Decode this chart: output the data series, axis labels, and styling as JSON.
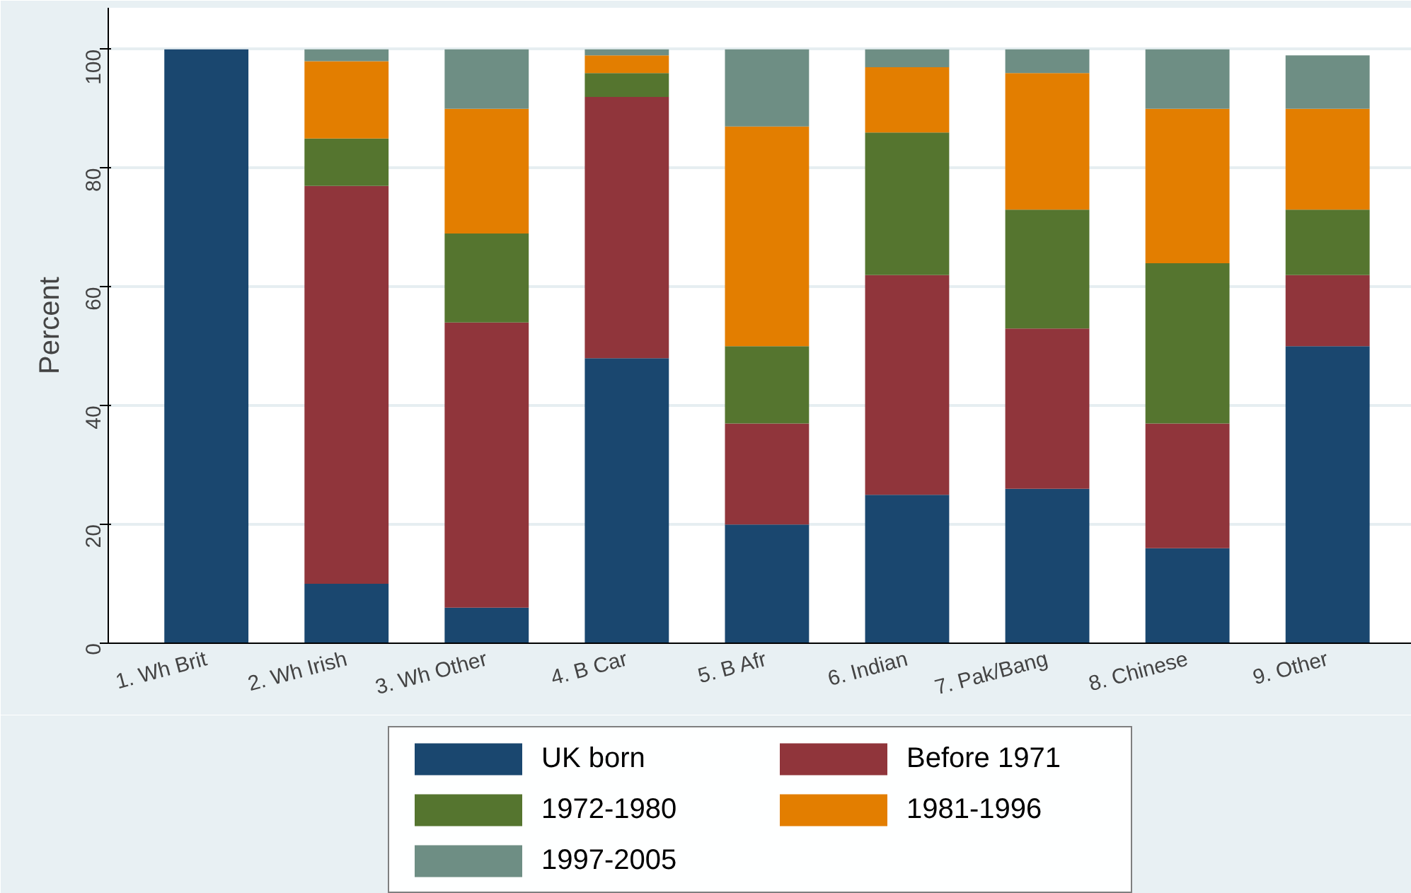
{
  "chart_data": {
    "type": "bar",
    "stacked": true,
    "ylabel": "Percent",
    "categories": [
      "1. Wh Brit",
      "2. Wh Irish",
      "3. Wh Other",
      "4. B Car",
      "5. B Afr",
      "6. Indian",
      "7. Pak/Bang",
      "8. Chinese",
      "9. Other"
    ],
    "series": [
      {
        "name": "UK born",
        "color": "#1a476f",
        "values": [
          100,
          10,
          6,
          48,
          20,
          25,
          26,
          16,
          50
        ]
      },
      {
        "name": "Before 1971",
        "color": "#90353b",
        "values": [
          0,
          67,
          48,
          44,
          17,
          37,
          27,
          21,
          12
        ]
      },
      {
        "name": "1972-1980",
        "color": "#55752f",
        "values": [
          0,
          8,
          15,
          4,
          13,
          24,
          20,
          27,
          11
        ]
      },
      {
        "name": "1981-1996",
        "color": "#e37e00",
        "values": [
          0,
          13,
          21,
          3,
          37,
          11,
          23,
          26,
          17
        ]
      },
      {
        "name": "1997-2005",
        "color": "#6e8e84",
        "values": [
          0,
          2,
          10,
          1,
          13,
          3,
          4,
          10,
          9
        ]
      }
    ],
    "ylim": [
      0,
      107
    ],
    "yticks": [
      0,
      20,
      40,
      60,
      80,
      100
    ],
    "grid": "y",
    "legend": "bottom"
  }
}
